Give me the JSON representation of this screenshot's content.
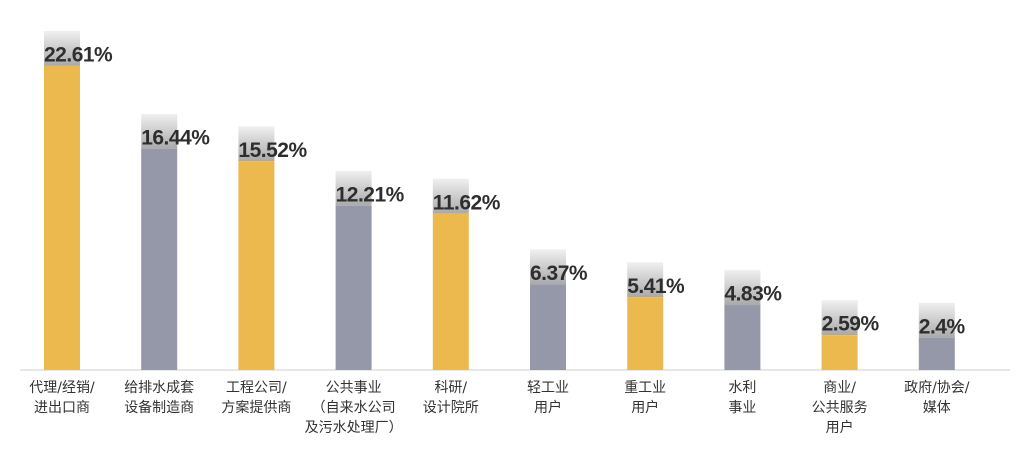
{
  "chart_data": {
    "type": "bar",
    "categories": [
      "代理/经销/\n进出口商",
      "给排水成套\n设备制造商",
      "工程公司/\n方案提供商",
      "公共事业\n（自来水公司\n及污水处理厂）",
      "科研/\n设计院所",
      "轻工业\n用户",
      "重工业\n用户",
      "水利\n事业",
      "商业/\n公共服务\n用户",
      "政府/协会/\n媒体"
    ],
    "values": [
      22.61,
      16.44,
      15.52,
      12.21,
      11.62,
      6.37,
      5.41,
      4.83,
      2.59,
      2.4
    ],
    "value_labels": [
      "22.61%",
      "16.44%",
      "15.52%",
      "12.21%",
      "11.62%",
      "6.37%",
      "5.41%",
      "4.83%",
      "2.59%",
      "2.4%"
    ],
    "colors": [
      "#ecb94f",
      "#9598a8",
      "#ecb94f",
      "#9598a8",
      "#ecb94f",
      "#9598a8",
      "#ecb94f",
      "#9598a8",
      "#ecb94f",
      "#9598a8"
    ]
  }
}
